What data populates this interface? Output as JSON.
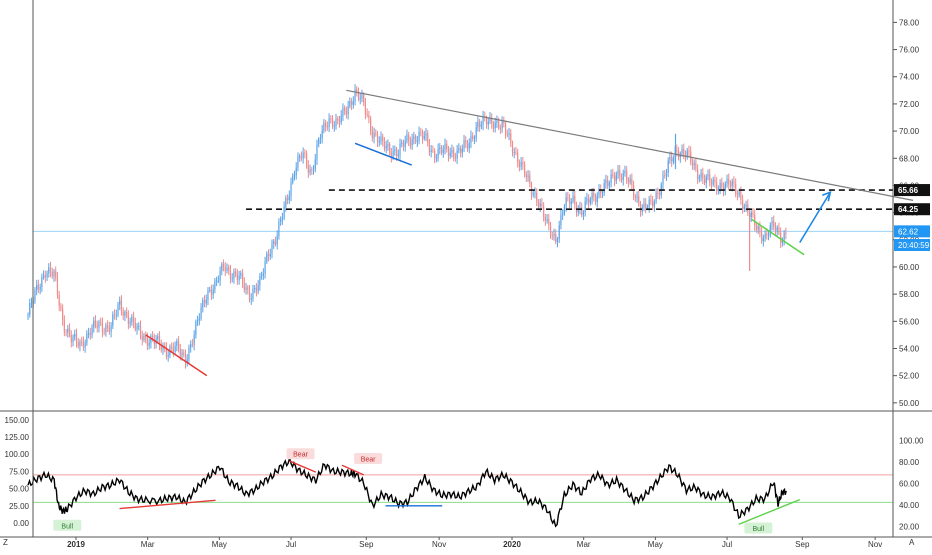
{
  "colors": {
    "up": "#5ba2e6",
    "down": "#ef8b8b",
    "trend_gray": "#7b7b7b",
    "blue_line": "#1a6fd6",
    "red_line": "#e53935",
    "green_line": "#5bd147",
    "horizontal_blue": "#9fd3f5",
    "rsi_upper": "#f2a1a1",
    "rsi_lower": "#8fdc8f"
  },
  "corner_labels": {
    "left": "Z",
    "right": "A"
  },
  "chart_data": [
    {
      "type": "line",
      "name": "price",
      "render_style": "candlestick",
      "x_axis": {
        "labels": [
          "2019",
          "Mar",
          "May",
          "Jul",
          "Sep",
          "Nov",
          "2020",
          "Mar",
          "May",
          "Jul",
          "Sep",
          "Nov"
        ],
        "bold_labels": [
          "2019",
          "2020"
        ],
        "positions": [
          0.0,
          0.1644,
          0.3288,
          0.4932,
          0.6658,
          0.8329,
          1.0,
          1.1644,
          1.3288,
          1.4932,
          1.6658,
          1.8329
        ]
      },
      "y_axis": {
        "ticks": [
          "50.00",
          "52.00",
          "54.00",
          "56.00",
          "58.00",
          "60.00",
          "62.00",
          "64.00",
          "66.00",
          "68.00",
          "70.00",
          "72.00",
          "74.00",
          "76.00",
          "78.00"
        ],
        "ylim": [
          49.4,
          79.5
        ]
      },
      "price_labels": [
        {
          "text": "65.66",
          "value": 65.66,
          "style": "black"
        },
        {
          "text": "64.25",
          "value": 64.25,
          "style": "black"
        },
        {
          "text": "62.62",
          "value": 62.62,
          "style": "blue"
        },
        {
          "text": "20:40:59",
          "value": 61.86,
          "style": "blue"
        }
      ],
      "close_points": [
        [
          -0.11,
          56.5
        ],
        [
          -0.09,
          58.3
        ],
        [
          -0.07,
          59.8
        ],
        [
          -0.05,
          59.3
        ],
        [
          -0.03,
          56.0
        ],
        [
          -0.01,
          54.6
        ],
        [
          0.01,
          54.3
        ],
        [
          0.03,
          55.2
        ],
        [
          0.05,
          55.7
        ],
        [
          0.08,
          55.6
        ],
        [
          0.1,
          57.2
        ],
        [
          0.12,
          56.3
        ],
        [
          0.14,
          55.3
        ],
        [
          0.16,
          54.8
        ],
        [
          0.19,
          54.3
        ],
        [
          0.21,
          53.9
        ],
        [
          0.23,
          54.0
        ],
        [
          0.25,
          53.3
        ],
        [
          0.27,
          54.8
        ],
        [
          0.29,
          57.2
        ],
        [
          0.3,
          58.2
        ],
        [
          0.32,
          58.5
        ],
        [
          0.34,
          60.3
        ],
        [
          0.36,
          59.3
        ],
        [
          0.38,
          59.0
        ],
        [
          0.4,
          58.0
        ],
        [
          0.42,
          58.5
        ],
        [
          0.44,
          61.2
        ],
        [
          0.46,
          62.0
        ],
        [
          0.48,
          64.7
        ],
        [
          0.5,
          67.0
        ],
        [
          0.52,
          68.3
        ],
        [
          0.54,
          67.0
        ],
        [
          0.56,
          69.5
        ],
        [
          0.58,
          71.0
        ],
        [
          0.6,
          70.5
        ],
        [
          0.62,
          71.6
        ],
        [
          0.64,
          72.9
        ],
        [
          0.66,
          71.9
        ],
        [
          0.68,
          70.0
        ],
        [
          0.7,
          69.0
        ],
        [
          0.72,
          68.7
        ],
        [
          0.74,
          68.4
        ],
        [
          0.76,
          69.4
        ],
        [
          0.78,
          69.6
        ],
        [
          0.8,
          69.5
        ],
        [
          0.82,
          68.4
        ],
        [
          0.84,
          68.5
        ],
        [
          0.86,
          68.5
        ],
        [
          0.88,
          68.5
        ],
        [
          0.9,
          69.0
        ],
        [
          0.92,
          70.5
        ],
        [
          0.94,
          70.6
        ],
        [
          0.96,
          70.8
        ],
        [
          0.98,
          70.2
        ],
        [
          1.0,
          69.0
        ],
        [
          1.02,
          67.5
        ],
        [
          1.04,
          66.0
        ],
        [
          1.06,
          65.0
        ],
        [
          1.08,
          63.0
        ],
        [
          1.1,
          62.1
        ],
        [
          1.12,
          64.5
        ],
        [
          1.14,
          65.0
        ],
        [
          1.16,
          64.0
        ],
        [
          1.18,
          65.0
        ],
        [
          1.2,
          65.6
        ],
        [
          1.22,
          66.0
        ],
        [
          1.24,
          67.1
        ],
        [
          1.26,
          66.6
        ],
        [
          1.28,
          65.5
        ],
        [
          1.3,
          64.3
        ],
        [
          1.32,
          64.5
        ],
        [
          1.34,
          66.0
        ],
        [
          1.36,
          67.5
        ],
        [
          1.38,
          68.7
        ],
        [
          1.4,
          68.3
        ],
        [
          1.42,
          67.2
        ],
        [
          1.44,
          66.6
        ],
        [
          1.46,
          66.0
        ],
        [
          1.48,
          66.1
        ],
        [
          1.5,
          66.0
        ],
        [
          1.52,
          65.5
        ],
        [
          1.54,
          64.0
        ],
        [
          1.56,
          63.0
        ],
        [
          1.58,
          62.2
        ],
        [
          1.6,
          63.0
        ],
        [
          1.62,
          62.2
        ],
        [
          1.63,
          62.6
        ]
      ]
    },
    {
      "type": "line",
      "name": "oscillator",
      "y_axis_left": {
        "ticks": [
          "0.00",
          "25.00",
          "50.00",
          "75.00",
          "100.00",
          "125.00",
          "150.00"
        ],
        "ylim": [
          -30,
          150
        ]
      },
      "y_axis_right": {
        "ticks": [
          "20.00",
          "40.00",
          "60.00",
          "80.00",
          "100.00"
        ]
      },
      "levels": [
        70,
        30
      ],
      "annotations": [
        "Bull",
        "Bear",
        "Bear",
        "Bull"
      ],
      "points": [
        [
          -0.11,
          55.0
        ],
        [
          -0.09,
          64.0
        ],
        [
          -0.07,
          70.0
        ],
        [
          -0.05,
          62.0
        ],
        [
          -0.04,
          25.0
        ],
        [
          -0.03,
          17.0
        ],
        [
          -0.02,
          20.0
        ],
        [
          0.0,
          37.0
        ],
        [
          0.02,
          47.0
        ],
        [
          0.04,
          42.0
        ],
        [
          0.06,
          52.0
        ],
        [
          0.08,
          55.0
        ],
        [
          0.1,
          63.0
        ],
        [
          0.12,
          45.0
        ],
        [
          0.14,
          35.0
        ],
        [
          0.16,
          33.0
        ],
        [
          0.19,
          32.0
        ],
        [
          0.21,
          36.0
        ],
        [
          0.23,
          38.0
        ],
        [
          0.25,
          30.0
        ],
        [
          0.27,
          45.0
        ],
        [
          0.29,
          60.0
        ],
        [
          0.31,
          70.0
        ],
        [
          0.33,
          82.0
        ],
        [
          0.35,
          60.0
        ],
        [
          0.37,
          54.0
        ],
        [
          0.39,
          42.0
        ],
        [
          0.41,
          48.0
        ],
        [
          0.43,
          60.0
        ],
        [
          0.45,
          68.0
        ],
        [
          0.47,
          82.0
        ],
        [
          0.49,
          90.0
        ],
        [
          0.51,
          77.0
        ],
        [
          0.53,
          69.0
        ],
        [
          0.55,
          62.0
        ],
        [
          0.57,
          85.0
        ],
        [
          0.59,
          75.0
        ],
        [
          0.61,
          74.0
        ],
        [
          0.63,
          72.0
        ],
        [
          0.64,
          72.0
        ],
        [
          0.66,
          58.0
        ],
        [
          0.68,
          25.0
        ],
        [
          0.7,
          41.0
        ],
        [
          0.72,
          38.0
        ],
        [
          0.74,
          28.0
        ],
        [
          0.76,
          30.0
        ],
        [
          0.78,
          50.0
        ],
        [
          0.8,
          66.0
        ],
        [
          0.82,
          48.0
        ],
        [
          0.84,
          40.0
        ],
        [
          0.86,
          42.0
        ],
        [
          0.88,
          38.0
        ],
        [
          0.9,
          46.0
        ],
        [
          0.92,
          53.0
        ],
        [
          0.94,
          75.0
        ],
        [
          0.96,
          63.0
        ],
        [
          0.98,
          70.0
        ],
        [
          1.0,
          59.0
        ],
        [
          1.02,
          45.0
        ],
        [
          1.04,
          30.0
        ],
        [
          1.06,
          32.0
        ],
        [
          1.08,
          20.0
        ],
        [
          1.1,
          -5.0
        ],
        [
          1.12,
          40.0
        ],
        [
          1.14,
          56.0
        ],
        [
          1.16,
          43.0
        ],
        [
          1.18,
          64.0
        ],
        [
          1.2,
          70.0
        ],
        [
          1.22,
          55.0
        ],
        [
          1.24,
          62.0
        ],
        [
          1.26,
          48.0
        ],
        [
          1.28,
          33.0
        ],
        [
          1.3,
          37.0
        ],
        [
          1.32,
          51.0
        ],
        [
          1.34,
          66.0
        ],
        [
          1.36,
          82.0
        ],
        [
          1.38,
          70.0
        ],
        [
          1.4,
          48.0
        ],
        [
          1.42,
          52.0
        ],
        [
          1.44,
          40.0
        ],
        [
          1.46,
          38.0
        ],
        [
          1.48,
          44.0
        ],
        [
          1.5,
          36.0
        ],
        [
          1.52,
          10.0
        ],
        [
          1.54,
          20.0
        ],
        [
          1.56,
          35.0
        ],
        [
          1.58,
          35.0
        ],
        [
          1.6,
          60.0
        ],
        [
          1.61,
          28.0
        ],
        [
          1.62,
          45.0
        ],
        [
          1.63,
          46.0
        ]
      ]
    }
  ]
}
